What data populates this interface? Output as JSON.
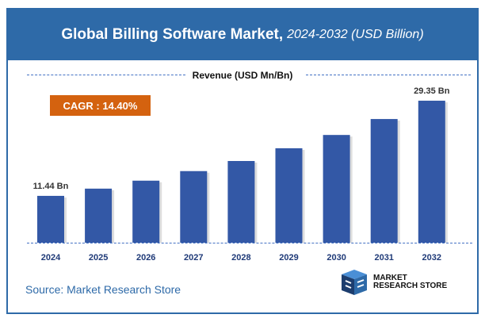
{
  "title": {
    "bold": "Global Billing Software Market,",
    "italic": "2024-2032 (USD Billion)"
  },
  "revenue_label": "Revenue (USD Mn/Bn)",
  "cagr": "CAGR : 14.40%",
  "source": "Source: Market Research Store",
  "logo": {
    "line1": "MARKET",
    "line2": "RESEARCH STORE"
  },
  "colors": {
    "header": "#2e6aa8",
    "bar": "#3358a6",
    "cagr": "#d4620f"
  },
  "chart_data": {
    "type": "bar",
    "categories": [
      "2024",
      "2025",
      "2026",
      "2027",
      "2028",
      "2029",
      "2030",
      "2031",
      "2032"
    ],
    "values": [
      11.44,
      12.8,
      14.3,
      16.1,
      18.0,
      20.4,
      22.9,
      25.9,
      29.35
    ],
    "data_labels": {
      "0": "11.44 Bn",
      "8": "29.35 Bn"
    },
    "ylabel": "Revenue (USD Mn/Bn)",
    "grid": false,
    "legend": "none"
  }
}
